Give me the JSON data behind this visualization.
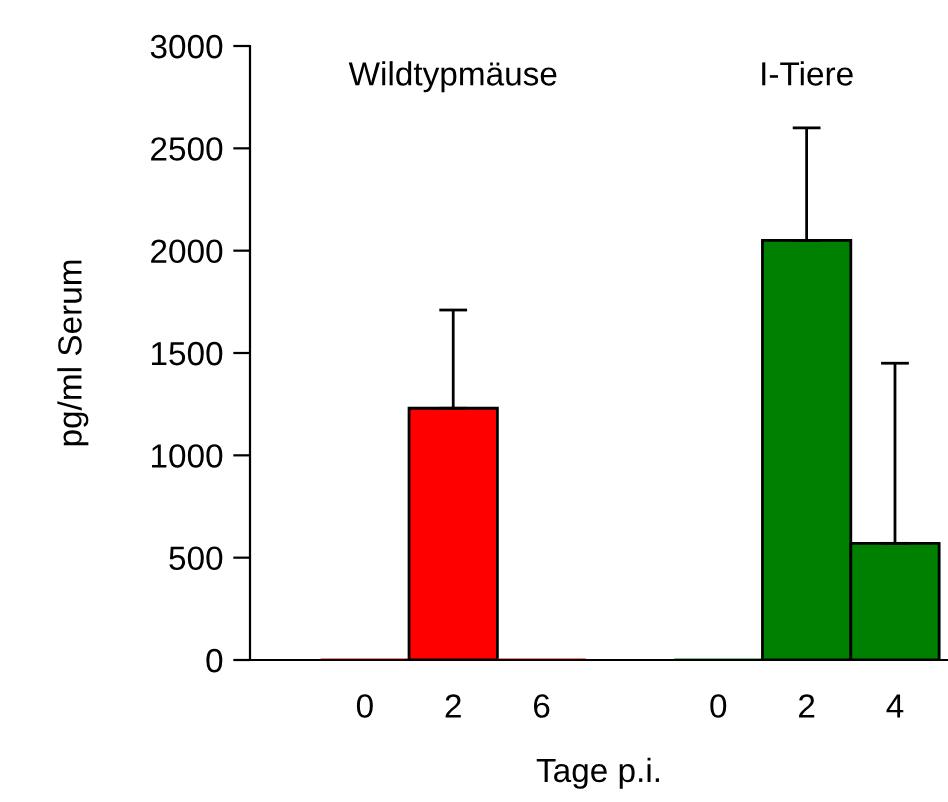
{
  "chart_data": {
    "type": "bar",
    "xlabel": "Tage p.i.",
    "ylabel": "pg/ml Serum",
    "categories": [
      "0",
      "2",
      "6",
      null,
      "0",
      "2",
      "4"
    ],
    "values": [
      0,
      1230,
      0,
      null,
      0,
      2050,
      570
    ],
    "colors": [
      "#ff0000",
      "#ff0000",
      "#ff0000",
      null,
      "#008000",
      "#008000",
      "#008000"
    ],
    "errors": [
      null,
      [
        1230,
        1710
      ],
      null,
      null,
      null,
      [
        2050,
        2600
      ],
      [
        570,
        1450
      ]
    ],
    "ylim": [
      0,
      3000
    ],
    "yticks": [
      0,
      500,
      1000,
      1500,
      2000,
      2500,
      3000
    ],
    "annotations": [
      "Wildtypmäuse",
      "I-Tiere"
    ],
    "grid": false,
    "legend": false
  }
}
